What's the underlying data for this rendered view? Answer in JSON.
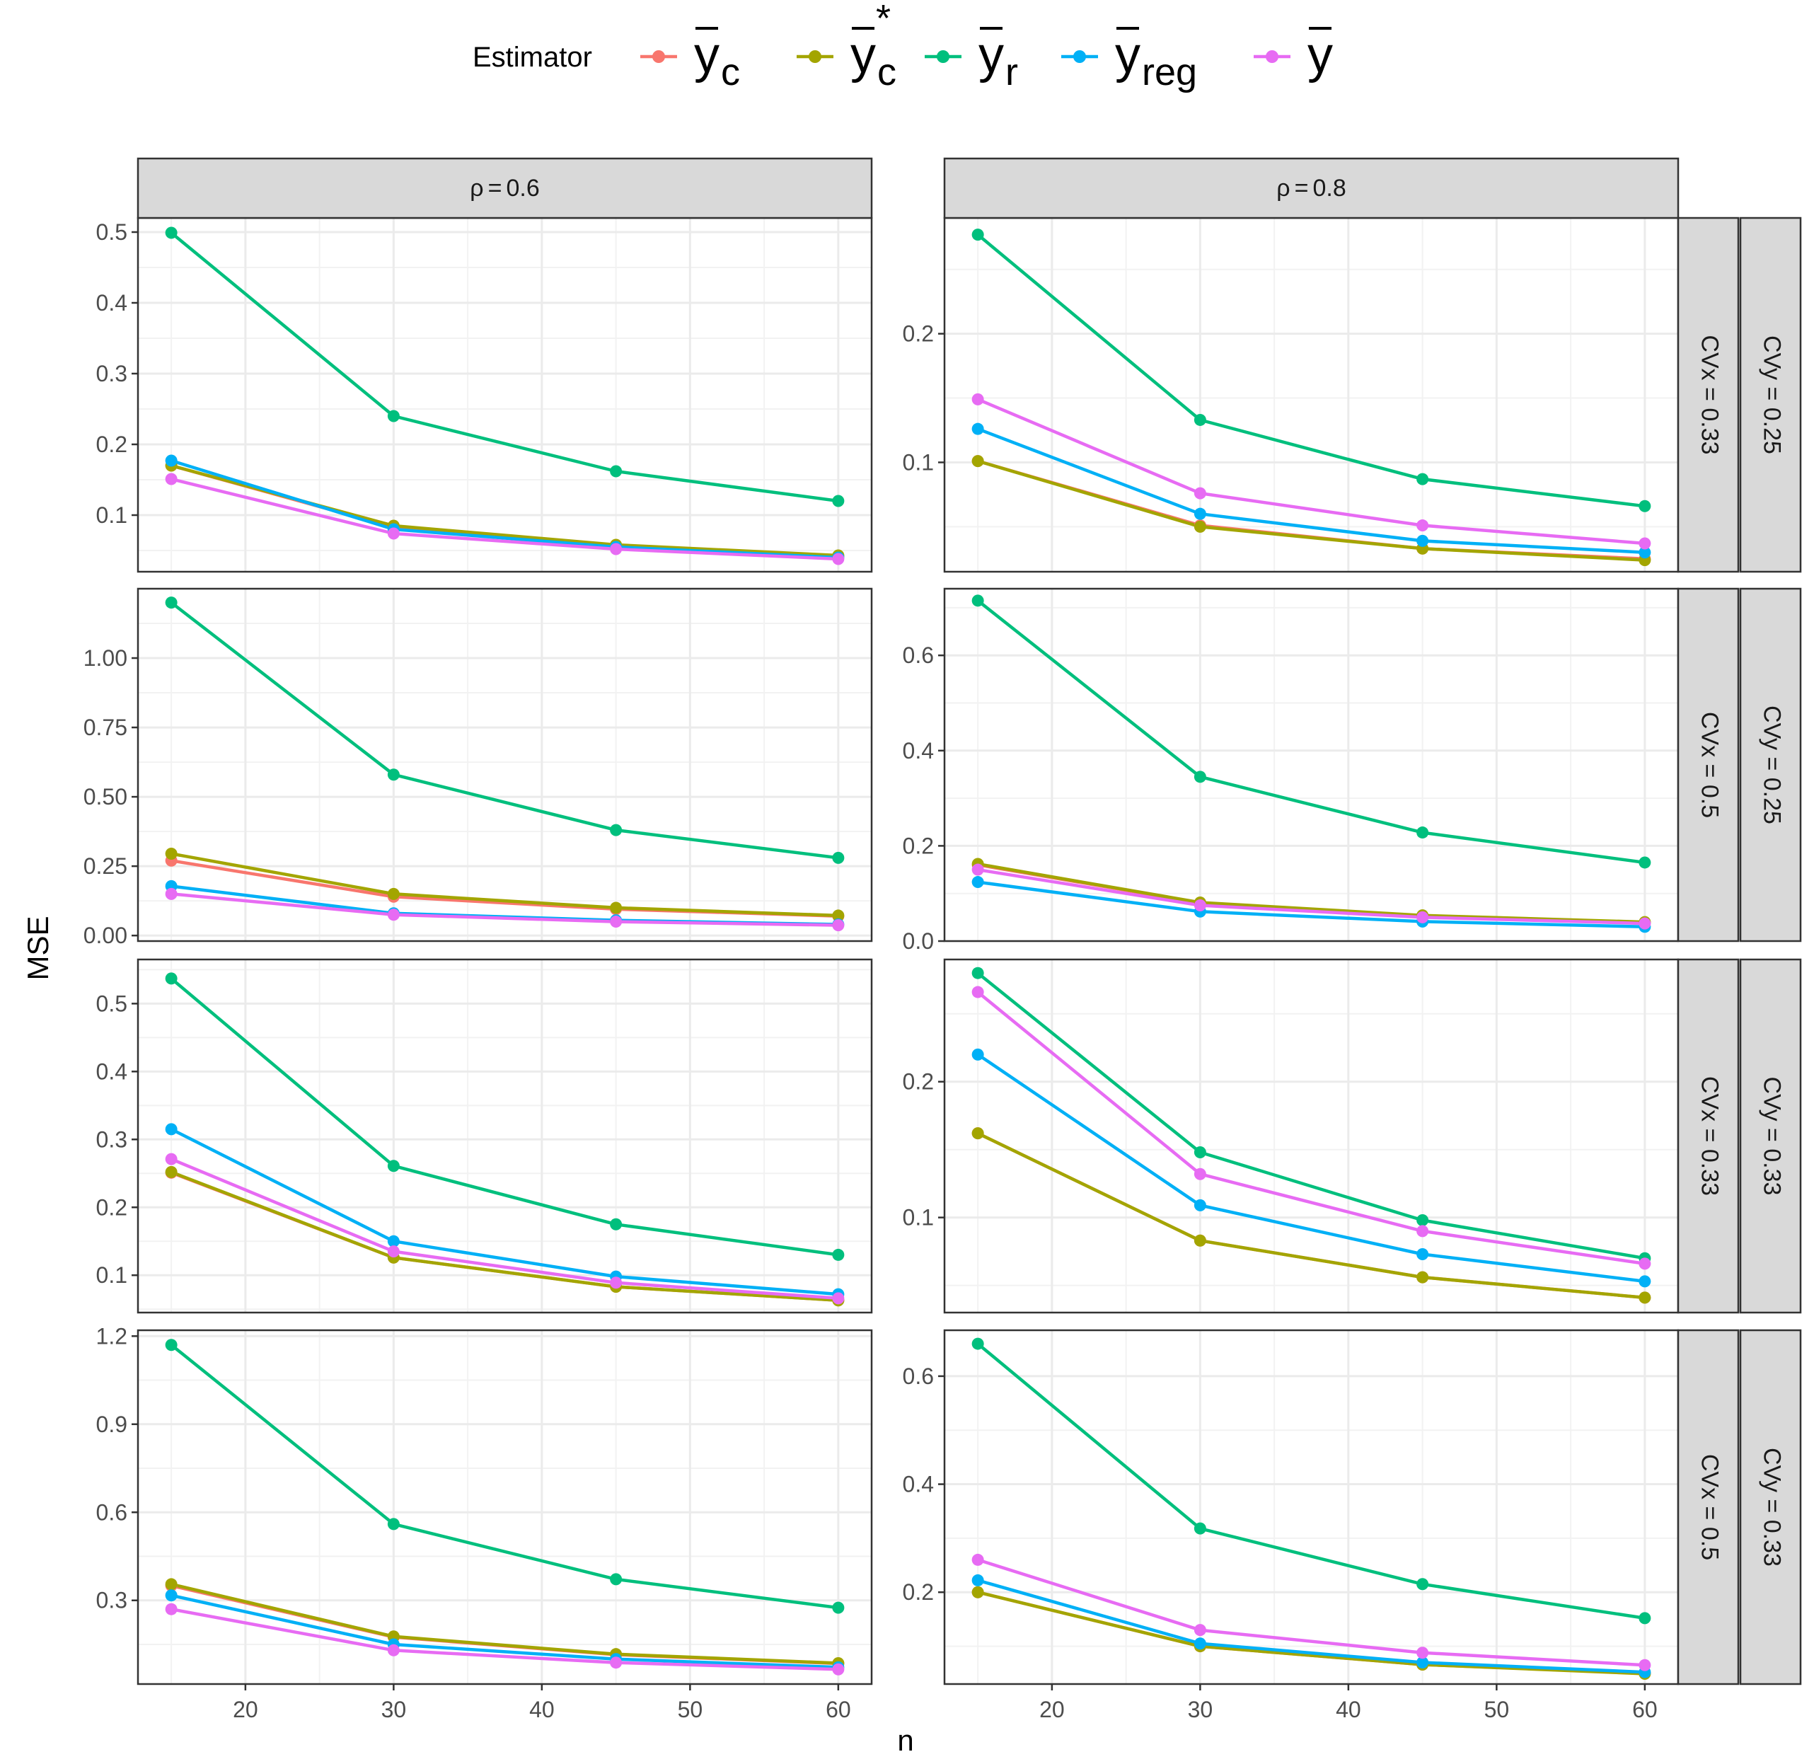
{
  "chart_data": {
    "type": "line",
    "xlabel": "n",
    "ylabel": "MSE",
    "x": [
      15,
      30,
      45,
      60
    ],
    "x_ticks": [
      20,
      30,
      40,
      50,
      60
    ],
    "xlim": [
      12.75,
      62.25
    ],
    "legend": {
      "title": "Estimator",
      "position": "top",
      "entries": [
        {
          "key": "yc",
          "symbol": "y",
          "sub": "c",
          "sup": "",
          "color": "#F8766D"
        },
        {
          "key": "yc_star",
          "symbol": "y",
          "sub": "c",
          "sup": "*",
          "color": "#A3A500"
        },
        {
          "key": "yr",
          "symbol": "y",
          "sub": "r",
          "sup": "",
          "color": "#00BF7D"
        },
        {
          "key": "yreg",
          "symbol": "y",
          "sub": "reg",
          "sup": "",
          "color": "#00B0F6"
        },
        {
          "key": "ybar",
          "symbol": "y",
          "sub": "",
          "sup": "",
          "color": "#E76BF3"
        }
      ]
    },
    "columns": [
      {
        "label_prefix": "ρ",
        "label_value": "0.6"
      },
      {
        "label_prefix": "ρ",
        "label_value": "0.8"
      }
    ],
    "rows": [
      {
        "strip_cvx": "CVx = 0.33",
        "strip_cvy": "CVy = 0.25"
      },
      {
        "strip_cvx": "CVx = 0.5",
        "strip_cvy": "CVy = 0.25"
      },
      {
        "strip_cvx": "CVx = 0.33",
        "strip_cvy": "CVy = 0.33"
      },
      {
        "strip_cvx": "CVx = 0.5",
        "strip_cvy": "CVy = 0.33"
      }
    ],
    "panels": [
      {
        "row": 0,
        "col": 0,
        "ylim": [
          0.02,
          0.52
        ],
        "y_ticks": [
          0.1,
          0.2,
          0.3,
          0.4,
          0.5
        ],
        "y_tick_labels": [
          "0.1",
          "0.2",
          "0.3",
          "0.4",
          "0.5"
        ],
        "series": {
          "yc": [
            0.17,
            0.083,
            0.057,
            0.042
          ],
          "yc_star": [
            0.17,
            0.085,
            0.058,
            0.043
          ],
          "yr": [
            0.499,
            0.24,
            0.162,
            0.12
          ],
          "yreg": [
            0.177,
            0.08,
            0.055,
            0.04
          ],
          "ybar": [
            0.151,
            0.074,
            0.052,
            0.038
          ]
        }
      },
      {
        "row": 0,
        "col": 1,
        "ylim": [
          0.015,
          0.29
        ],
        "y_ticks": [
          0.1,
          0.2
        ],
        "y_tick_labels": [
          "0.1",
          "0.2"
        ],
        "series": {
          "yc": [
            0.101,
            0.051,
            0.033,
            0.025
          ],
          "yc_star": [
            0.101,
            0.05,
            0.033,
            0.024
          ],
          "yr": [
            0.277,
            0.133,
            0.087,
            0.066
          ],
          "yreg": [
            0.126,
            0.06,
            0.039,
            0.03
          ],
          "ybar": [
            0.149,
            0.076,
            0.051,
            0.037
          ]
        }
      },
      {
        "row": 1,
        "col": 0,
        "ylim": [
          -0.02,
          1.25
        ],
        "y_ticks": [
          0,
          0.25,
          0.5,
          0.75,
          1.0
        ],
        "y_tick_labels": [
          "0.00",
          "0.25",
          "0.50",
          "0.75",
          "1.00"
        ],
        "series": {
          "yc": [
            0.27,
            0.14,
            0.095,
            0.07
          ],
          "yc_star": [
            0.295,
            0.15,
            0.1,
            0.072
          ],
          "yr": [
            1.2,
            0.58,
            0.38,
            0.28
          ],
          "yreg": [
            0.178,
            0.08,
            0.055,
            0.04
          ],
          "ybar": [
            0.15,
            0.075,
            0.05,
            0.037
          ]
        }
      },
      {
        "row": 1,
        "col": 1,
        "ylim": [
          0.0,
          0.74
        ],
        "y_ticks": [
          0,
          0.2,
          0.4,
          0.6
        ],
        "y_tick_labels": [
          "0.0",
          "0.2",
          "0.4",
          "0.6"
        ],
        "series": {
          "yc": [
            0.16,
            0.08,
            0.053,
            0.039
          ],
          "yc_star": [
            0.162,
            0.081,
            0.054,
            0.04
          ],
          "yr": [
            0.715,
            0.345,
            0.228,
            0.165
          ],
          "yreg": [
            0.124,
            0.062,
            0.041,
            0.03
          ],
          "ybar": [
            0.15,
            0.075,
            0.05,
            0.037
          ]
        }
      },
      {
        "row": 2,
        "col": 0,
        "ylim": [
          0.045,
          0.565
        ],
        "y_ticks": [
          0.1,
          0.2,
          0.3,
          0.4,
          0.5
        ],
        "y_tick_labels": [
          "0.1",
          "0.2",
          "0.3",
          "0.4",
          "0.5"
        ],
        "series": {
          "yc": [
            0.251,
            0.126,
            0.083,
            0.063
          ],
          "yc_star": [
            0.252,
            0.126,
            0.083,
            0.063
          ],
          "yr": [
            0.537,
            0.261,
            0.175,
            0.13
          ],
          "yreg": [
            0.315,
            0.15,
            0.098,
            0.072
          ],
          "ybar": [
            0.271,
            0.135,
            0.089,
            0.066
          ]
        }
      },
      {
        "row": 2,
        "col": 1,
        "ylim": [
          0.03,
          0.29
        ],
        "y_ticks": [
          0.1,
          0.2
        ],
        "y_tick_labels": [
          "0.1",
          "0.2"
        ],
        "series": {
          "yc": [
            0.162,
            0.083,
            0.056,
            0.041
          ],
          "yc_star": [
            0.162,
            0.083,
            0.056,
            0.041
          ],
          "yr": [
            0.28,
            0.148,
            0.098,
            0.07
          ],
          "yreg": [
            0.22,
            0.109,
            0.073,
            0.053
          ],
          "ybar": [
            0.266,
            0.132,
            0.09,
            0.066
          ]
        }
      },
      {
        "row": 3,
        "col": 0,
        "ylim": [
          0.015,
          1.22
        ],
        "y_ticks": [
          0.3,
          0.6,
          0.9,
          1.2
        ],
        "y_tick_labels": [
          "0.3",
          "0.6",
          "0.9",
          "1.2"
        ],
        "series": {
          "yc": [
            0.35,
            0.175,
            0.115,
            0.085
          ],
          "yc_star": [
            0.355,
            0.177,
            0.117,
            0.086
          ],
          "yr": [
            1.17,
            0.56,
            0.372,
            0.275
          ],
          "yreg": [
            0.317,
            0.15,
            0.1,
            0.072
          ],
          "ybar": [
            0.27,
            0.13,
            0.088,
            0.065
          ]
        }
      },
      {
        "row": 3,
        "col": 1,
        "ylim": [
          0.03,
          0.685
        ],
        "y_ticks": [
          0.2,
          0.4,
          0.6
        ],
        "y_tick_labels": [
          "0.2",
          "0.4",
          "0.6"
        ],
        "series": {
          "yc": [
            0.2,
            0.1,
            0.066,
            0.05
          ],
          "yc_star": [
            0.2,
            0.1,
            0.066,
            0.049
          ],
          "yr": [
            0.66,
            0.318,
            0.215,
            0.152
          ],
          "yreg": [
            0.222,
            0.105,
            0.07,
            0.052
          ],
          "ybar": [
            0.26,
            0.13,
            0.088,
            0.065
          ]
        }
      }
    ]
  }
}
